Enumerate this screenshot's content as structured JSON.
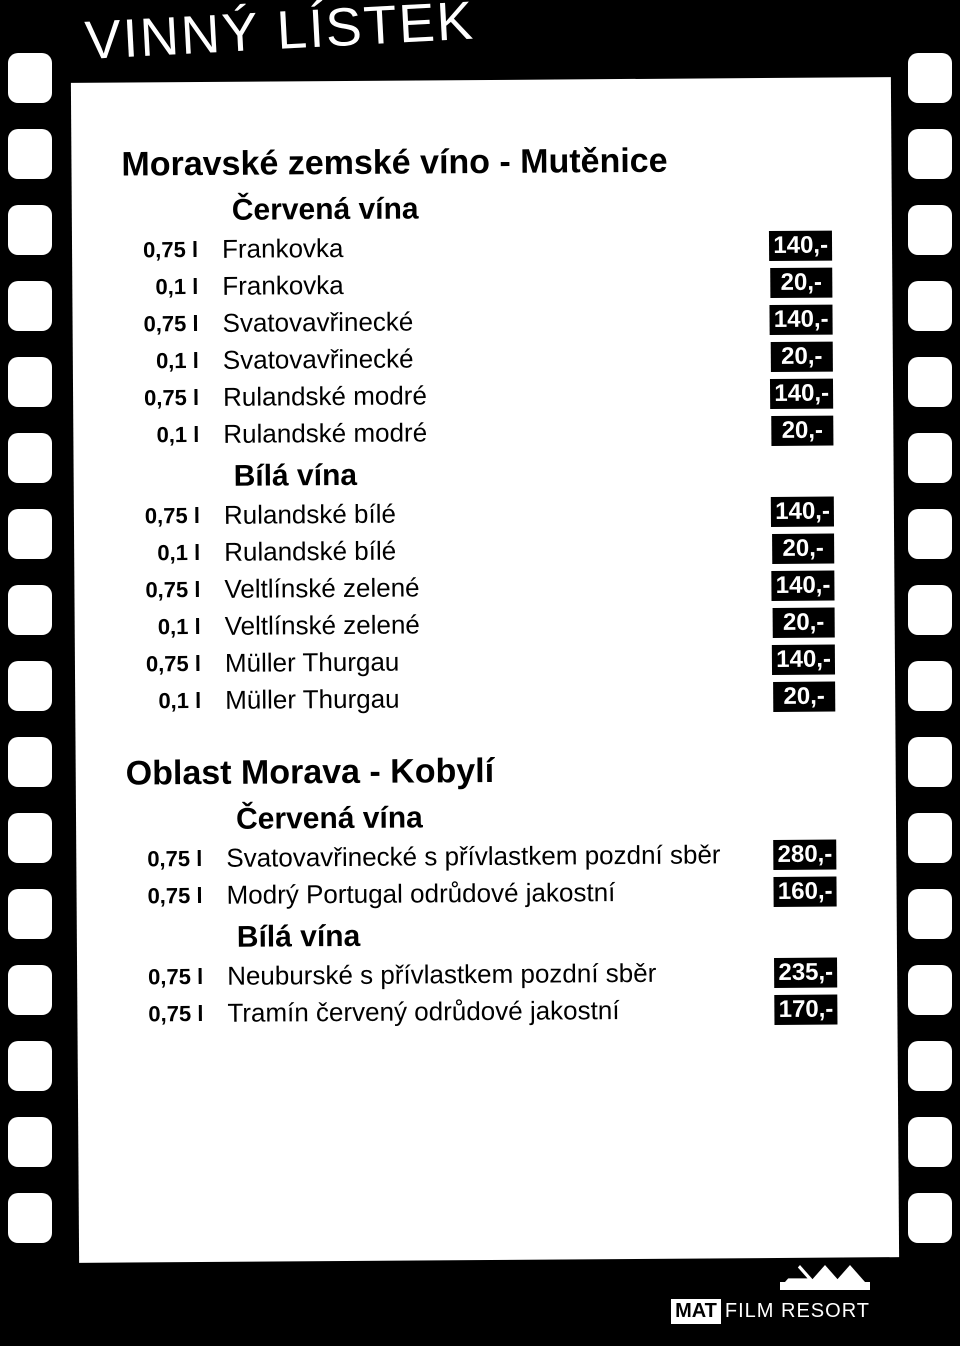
{
  "page_title": "VINNÝ LÍSTEK",
  "sections": [
    {
      "heading": "Moravské zemské víno - Mutěnice",
      "groups": [
        {
          "sub": "Červená vína",
          "items": [
            {
              "vol": "0,75 l",
              "name": "Frankovka",
              "price": "140,-"
            },
            {
              "vol": "0,1 l",
              "name": "Frankovka",
              "price": "20,-"
            },
            {
              "vol": "0,75 l",
              "name": "Svatovavřinecké",
              "price": "140,-"
            },
            {
              "vol": "0,1 l",
              "name": "Svatovavřinecké",
              "price": "20,-"
            },
            {
              "vol": "0,75 l",
              "name": "Rulandské modré",
              "price": "140,-"
            },
            {
              "vol": "0,1 l",
              "name": "Rulandské modré",
              "price": "20,-"
            }
          ]
        },
        {
          "sub": "Bílá vína",
          "items": [
            {
              "vol": "0,75 l",
              "name": "Rulandské bílé",
              "price": "140,-"
            },
            {
              "vol": "0,1 l",
              "name": "Rulandské bílé",
              "price": "20,-"
            },
            {
              "vol": "0,75 l",
              "name": "Veltlínské zelené",
              "price": "140,-"
            },
            {
              "vol": "0,1 l",
              "name": "Veltlínské zelené",
              "price": "20,-"
            },
            {
              "vol": "0,75 l",
              "name": "Müller Thurgau",
              "price": "140,-"
            },
            {
              "vol": "0,1 l",
              "name": "Müller Thurgau",
              "price": "20,-"
            }
          ]
        }
      ]
    },
    {
      "heading": "Oblast Morava - Kobylí",
      "groups": [
        {
          "sub": "Červená vína",
          "items": [
            {
              "vol": "0,75 l",
              "name": "Svatovavřinecké s přívlastkem pozdní sběr",
              "price": "280,-"
            },
            {
              "vol": "0,75 l",
              "name": "Modrý Portugal odrůdové jakostní",
              "price": "160,-"
            }
          ]
        },
        {
          "sub": "Bílá vína",
          "items": [
            {
              "vol": "0,75 l",
              "name": "Neuburské s přívlastkem pozdní sběr",
              "price": "235,-"
            },
            {
              "vol": "0,75 l",
              "name": "Tramín červený odrůdové jakostní",
              "price": "170,-"
            }
          ]
        }
      ]
    }
  ],
  "footer": {
    "brand_box": "MAT",
    "brand_rest": "FILM RESORT"
  },
  "colors": {
    "bg": "#000000",
    "card": "#ffffff",
    "price_bg": "#000000",
    "price_fg": "#ffffff"
  },
  "sprocket_count": 16
}
